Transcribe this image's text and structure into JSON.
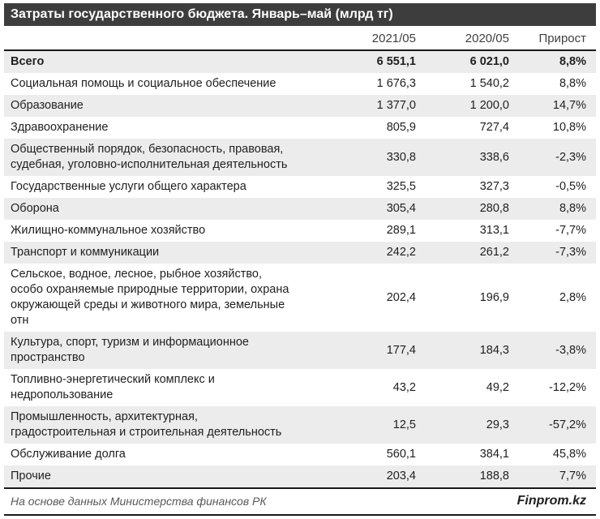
{
  "title": "Затраты государственного бюджета. Январь–май (млрд тг)",
  "table": {
    "col_headers": [
      "2021/05",
      "2020/05",
      "Прирост"
    ],
    "rows": [
      {
        "label": "Всего",
        "v2021": "6 551,1",
        "v2020": "6 021,0",
        "growth": "8,8%",
        "bold": true
      },
      {
        "label": "Социальная помощь и социальное обеспечение",
        "v2021": "1 676,3",
        "v2020": "1 540,2",
        "growth": "8,8%"
      },
      {
        "label": "Образование",
        "v2021": "1 377,0",
        "v2020": "1 200,0",
        "growth": "14,7%"
      },
      {
        "label": "Здравоохранение",
        "v2021": "805,9",
        "v2020": "727,4",
        "growth": "10,8%"
      },
      {
        "label": "Общественный порядок, безопасность, правовая, судебная, уголовно-исполнительная деятельность",
        "v2021": "330,8",
        "v2020": "338,6",
        "growth": "-2,3%"
      },
      {
        "label": "Государственные услуги общего характера",
        "v2021": "325,5",
        "v2020": "327,3",
        "growth": "-0,5%"
      },
      {
        "label": "Оборона",
        "v2021": "305,4",
        "v2020": "280,8",
        "growth": "8,8%"
      },
      {
        "label": "Жилищно-коммунальное хозяйство",
        "v2021": "289,1",
        "v2020": "313,1",
        "growth": "-7,7%"
      },
      {
        "label": "Транспорт и коммуникации",
        "v2021": "242,2",
        "v2020": "261,2",
        "growth": "-7,3%"
      },
      {
        "label": "Сельское, водное, лесное, рыбное хозяйство, особо охраняемые природные территории, охрана окружающей среды и животного мира, земельные отн",
        "v2021": "202,4",
        "v2020": "196,9",
        "growth": "2,8%"
      },
      {
        "label": "Культура, спорт, туризм и информационное пространство",
        "v2021": "177,4",
        "v2020": "184,3",
        "growth": "-3,8%"
      },
      {
        "label": "Топливно-энергетический комплекс и недропользование",
        "v2021": "43,2",
        "v2020": "49,2",
        "growth": "-12,2%"
      },
      {
        "label": "Промышленность, архитектурная, градостроительная и строительная деятельность",
        "v2021": "12,5",
        "v2020": "29,3",
        "growth": "-57,2%"
      },
      {
        "label": "Обслуживание долга",
        "v2021": "560,1",
        "v2020": "384,1",
        "growth": "45,8%"
      },
      {
        "label": "Прочие",
        "v2021": "203,4",
        "v2020": "188,8",
        "growth": "7,7%"
      }
    ]
  },
  "footer": {
    "source": "На основе данных Министерства финансов РК",
    "brand": "Finprom.kz"
  },
  "colors": {
    "title_bg": "#3d3d3d",
    "title_text": "#ffffff",
    "row_alt_bg": "#ececec",
    "border_dark": "#1a1a1a",
    "source_text": "#595959"
  },
  "chart_data": {
    "type": "table",
    "title": "Затраты государственного бюджета. Январь–май (млрд тг)",
    "columns": [
      "2021/05",
      "2020/05",
      "Прирост"
    ],
    "units": "млрд тг",
    "rows": [
      {
        "category": "Всего",
        "y2021_05": 6551.1,
        "y2020_05": 6021.0,
        "growth_pct": 8.8
      },
      {
        "category": "Социальная помощь и социальное обеспечение",
        "y2021_05": 1676.3,
        "y2020_05": 1540.2,
        "growth_pct": 8.8
      },
      {
        "category": "Образование",
        "y2021_05": 1377.0,
        "y2020_05": 1200.0,
        "growth_pct": 14.7
      },
      {
        "category": "Здравоохранение",
        "y2021_05": 805.9,
        "y2020_05": 727.4,
        "growth_pct": 10.8
      },
      {
        "category": "Общественный порядок, безопасность, правовая, судебная, уголовно-исполнительная деятельность",
        "y2021_05": 330.8,
        "y2020_05": 338.6,
        "growth_pct": -2.3
      },
      {
        "category": "Государственные услуги общего характера",
        "y2021_05": 325.5,
        "y2020_05": 327.3,
        "growth_pct": -0.5
      },
      {
        "category": "Оборона",
        "y2021_05": 305.4,
        "y2020_05": 280.8,
        "growth_pct": 8.8
      },
      {
        "category": "Жилищно-коммунальное хозяйство",
        "y2021_05": 289.1,
        "y2020_05": 313.1,
        "growth_pct": -7.7
      },
      {
        "category": "Транспорт и коммуникации",
        "y2021_05": 242.2,
        "y2020_05": 261.2,
        "growth_pct": -7.3
      },
      {
        "category": "Сельское, водное, лесное, рыбное хозяйство, особо охраняемые природные территории, охрана окружающей среды и животного мира, земельные отн",
        "y2021_05": 202.4,
        "y2020_05": 196.9,
        "growth_pct": 2.8
      },
      {
        "category": "Культура, спорт, туризм и информационное пространство",
        "y2021_05": 177.4,
        "y2020_05": 184.3,
        "growth_pct": -3.8
      },
      {
        "category": "Топливно-энергетический комплекс и недропользование",
        "y2021_05": 43.2,
        "y2020_05": 49.2,
        "growth_pct": -12.2
      },
      {
        "category": "Промышленность, архитектурная, градостроительная и строительная деятельность",
        "y2021_05": 12.5,
        "y2020_05": 29.3,
        "growth_pct": -57.2
      },
      {
        "category": "Обслуживание долга",
        "y2021_05": 560.1,
        "y2020_05": 384.1,
        "growth_pct": 45.8
      },
      {
        "category": "Прочие",
        "y2021_05": 203.4,
        "y2020_05": 188.8,
        "growth_pct": 7.7
      }
    ]
  }
}
